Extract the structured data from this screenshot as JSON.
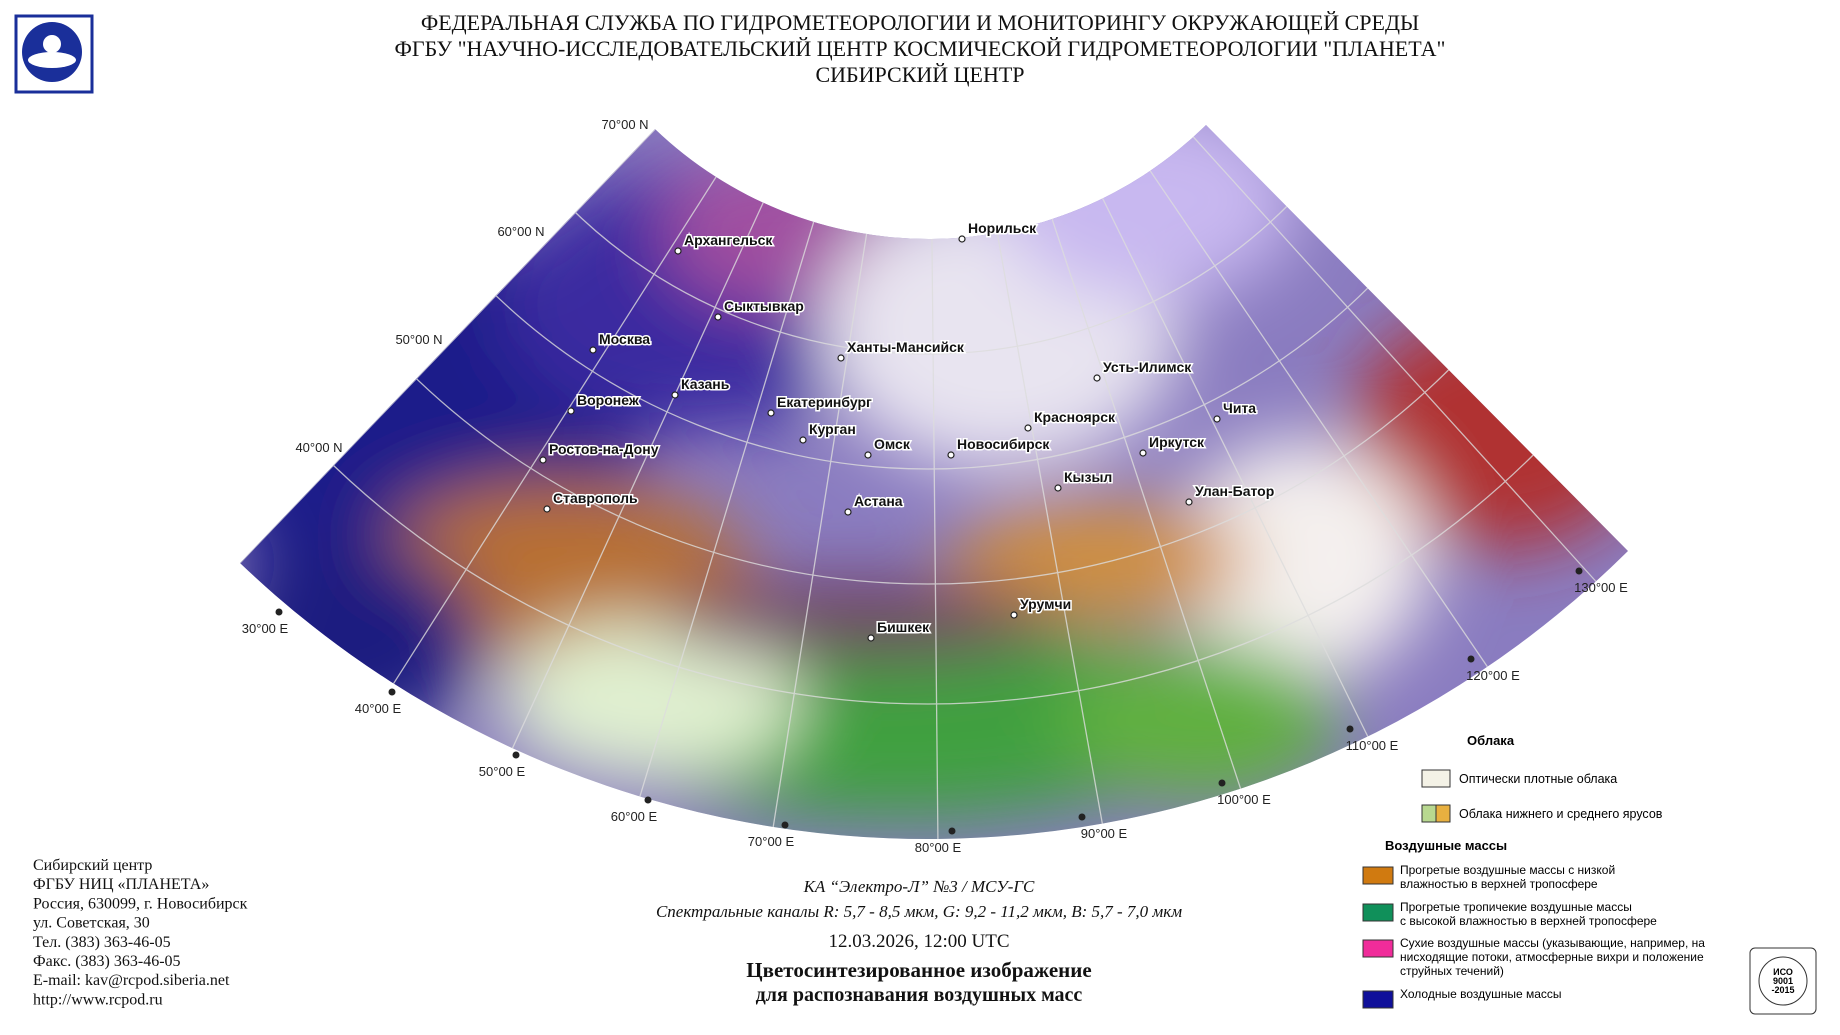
{
  "header": {
    "lines": [
      "ФЕДЕРАЛЬНАЯ СЛУЖБА ПО ГИДРОМЕТЕОРОЛОГИИ И МОНИТОРИНГУ ОКРУЖАЮЩЕЙ СРЕДЫ",
      "ФГБУ \"НАУЧНО-ИССЛЕДОВАТЕЛЬСКИЙ ЦЕНТР КОСМИЧЕСКОЙ ГИДРОМЕТЕОРОЛОГИИ \"ПЛАНЕТА\"",
      "СИБИРСКИЙ ЦЕНТР"
    ]
  },
  "map": {
    "grid_labels": [
      "70°00 N",
      "60°00 N",
      "50°00 N",
      "40°00 N",
      "30°00 E",
      "40°00 E",
      "50°00 E",
      "60°00 E",
      "70°00 E",
      "80°00 E",
      "90°00 E",
      "100°00 E",
      "110°00 E",
      "120°00 E",
      "130°00 E"
    ],
    "cities": [
      "Архангельск",
      "Норильск",
      "Сыктывкар",
      "Москва",
      "Ханты-Мансийск",
      "Усть-Илимск",
      "Казань",
      "Воронеж",
      "Екатеринбург",
      "Чита",
      "Красноярск",
      "Курган",
      "Омск",
      "Новосибирск",
      "Иркутск",
      "Ростов-на-Дону",
      "Кызыл",
      "Улан-Батор",
      "Ставрополь",
      "Астана",
      "Урумчи",
      "Бишкек"
    ]
  },
  "legend": {
    "clouds_title": "Облака",
    "cloud_items": [
      [
        "Оптически плотные облака"
      ],
      [
        "Облака нижнего и среднего ярусов"
      ]
    ],
    "air_title": "Воздушные массы",
    "air_items": [
      [
        "Прогретые воздушные массы с низкой",
        "влажностью в верхней тропосфере"
      ],
      [
        "Прогретые тропичекие воздушные массы",
        "с высокой влажностью в верхней тропосфере"
      ],
      [
        "Сухие воздушные массы (указывающие, например, на",
        "нисходящие потоки, атмосферные вихри и положение",
        "струйных течений)"
      ],
      [
        "Холодные воздушные массы"
      ]
    ]
  },
  "contacts": {
    "lines": [
      "Сибирский центр",
      "ФГБУ НИЦ «ПЛАНЕТА»",
      "Россия, 630099, г. Новосибирск",
      "ул. Советская, 30",
      "Тел. (383) 363-46-05",
      "Факс. (383) 363-46-05",
      "E-mail: kav@rcpod.siberia.net",
      "http://www.rcpod.ru"
    ]
  },
  "caption": {
    "lines": [
      "КА “Электро-Л” №3 / МСУ-ГС",
      "Спектральные каналы R: 5,7 - 8,5 мкм, G: 9,2 - 11,2 мкм, B: 5,7 - 7,0 мкм",
      "12.03.2026, 12:00 UTC",
      "Цветосинтезированное изображение",
      "для распознавания воздушных масс"
    ]
  },
  "iso": {
    "lines": [
      "ИСО",
      "9001",
      "-2015"
    ]
  }
}
